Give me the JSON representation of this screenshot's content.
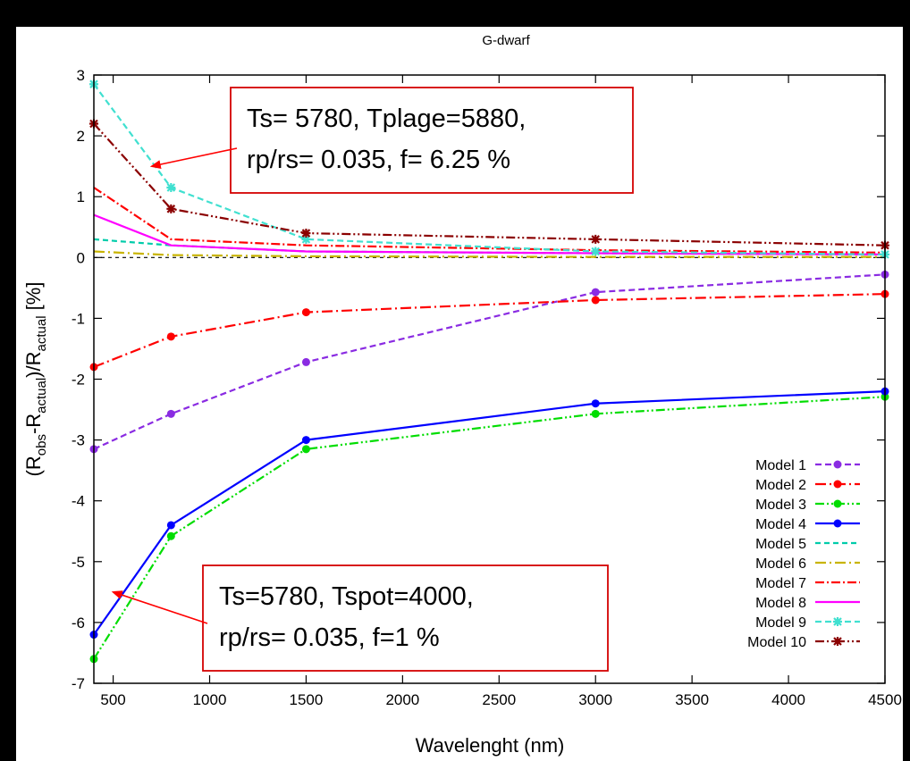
{
  "chart_data": {
    "type": "line",
    "title": "G-dwarf",
    "xlabel": "Wavelenght (nm)",
    "ylabel": {
      "parts": [
        {
          "text": "(R",
          "sub": false
        },
        {
          "text": "obs",
          "sub": true
        },
        {
          "text": "-R",
          "sub": false
        },
        {
          "text": "actual",
          "sub": true
        },
        {
          "text": ")/R",
          "sub": false
        },
        {
          "text": "actual",
          "sub": true
        },
        {
          "text": " [%]",
          "sub": false
        }
      ]
    },
    "xlim": [
      400,
      4500
    ],
    "ylim": [
      -7,
      3
    ],
    "xticks": [
      500,
      1000,
      1500,
      2000,
      2500,
      3000,
      3500,
      4000,
      4500
    ],
    "yticks": [
      -7,
      -6,
      -5,
      -4,
      -3,
      -2,
      -1,
      0,
      1,
      2,
      3
    ],
    "legend_position": "bottom-right",
    "x": [
      400,
      800,
      1500,
      3000,
      4500
    ],
    "series": [
      {
        "name": "Model 1",
        "color": "#8a2be2",
        "dash": "7,4",
        "marker": "dot",
        "values": [
          -3.15,
          -2.57,
          -1.72,
          -0.57,
          -0.28
        ]
      },
      {
        "name": "Model 2",
        "color": "#ff0000",
        "dash": "12,4,2,4",
        "marker": "dot",
        "values": [
          -1.8,
          -1.3,
          -0.9,
          -0.7,
          -0.6
        ]
      },
      {
        "name": "Model 3",
        "color": "#00dd00",
        "dash": "10,3,2,3,2,3",
        "marker": "dot",
        "values": [
          -6.6,
          -4.58,
          -3.15,
          -2.57,
          -2.29
        ]
      },
      {
        "name": "Model 4",
        "color": "#0000ff",
        "dash": "",
        "marker": "dot",
        "values": [
          -6.2,
          -4.4,
          -3.0,
          -2.4,
          -2.2
        ]
      },
      {
        "name": "Model 5",
        "color": "#00ccaa",
        "dash": "6,4",
        "marker": "none",
        "values": [
          0.3,
          0.2,
          0.1,
          0.07,
          0.05
        ]
      },
      {
        "name": "Model 6",
        "color": "#c8b400",
        "dash": "12,4,2,4",
        "marker": "none",
        "values": [
          0.1,
          0.04,
          0.02,
          0.01,
          0.01
        ]
      },
      {
        "name": "Model 7",
        "color": "#ff0000",
        "dash": "10,3,2,3",
        "marker": "none",
        "values": [
          1.15,
          0.3,
          0.2,
          0.12,
          0.08
        ]
      },
      {
        "name": "Model 8",
        "color": "#ff00ff",
        "dash": "",
        "marker": "none",
        "values": [
          0.7,
          0.2,
          0.1,
          0.07,
          0.05
        ]
      },
      {
        "name": "Model 9",
        "color": "#40e0d0",
        "dash": "7,4",
        "marker": "star",
        "values": [
          2.85,
          1.15,
          0.3,
          0.1,
          0.05
        ]
      },
      {
        "name": "Model 10",
        "color": "#8b0000",
        "dash": "10,3,2,3,2,3",
        "marker": "star",
        "values": [
          2.2,
          0.8,
          0.4,
          0.3,
          0.2
        ]
      }
    ],
    "annotations": [
      {
        "id": "plage",
        "lines": [
          "Ts= 5780, Tplage=5880,",
          "rp/rs= 0.035, f= 6.25 %"
        ],
        "border_color": "#d40000",
        "arrow_target": [
          700,
          1.5
        ]
      },
      {
        "id": "spot",
        "lines": [
          "Ts=5780, Tspot=4000,",
          "rp/rs= 0.035, f=1 %"
        ],
        "border_color": "#d40000",
        "arrow_target": [
          500,
          -5.5
        ]
      }
    ]
  }
}
